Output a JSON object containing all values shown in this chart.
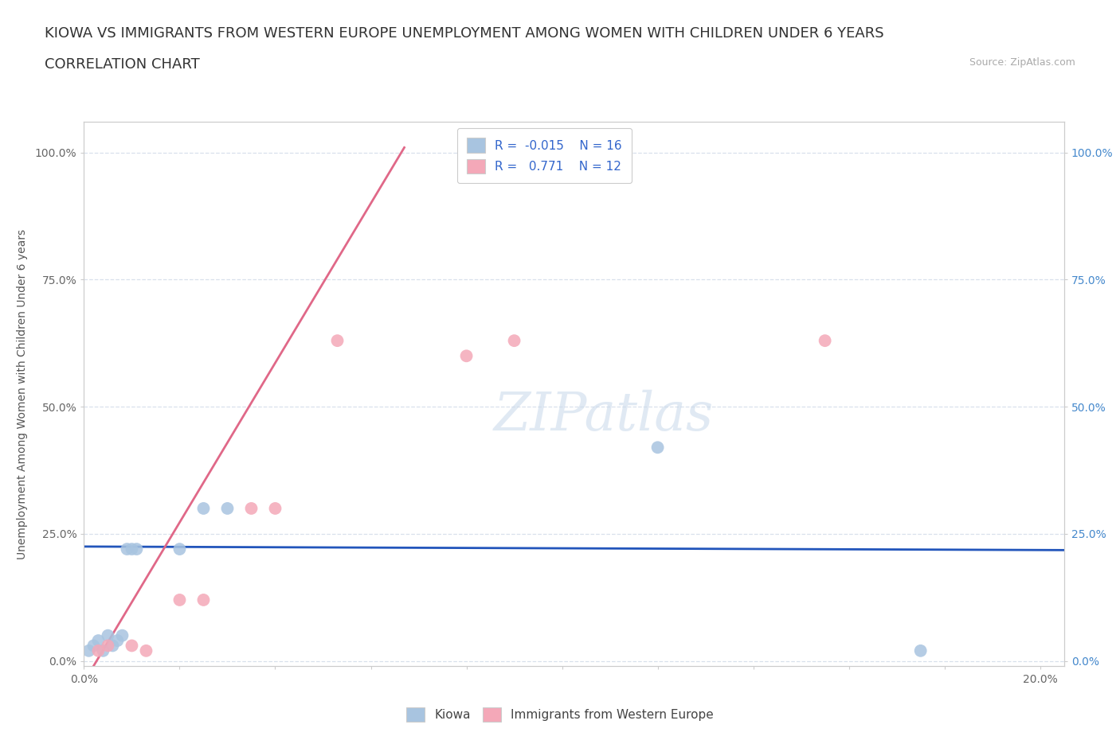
{
  "title_line1": "KIOWA VS IMMIGRANTS FROM WESTERN EUROPE UNEMPLOYMENT AMONG WOMEN WITH CHILDREN UNDER 6 YEARS",
  "title_line2": "CORRELATION CHART",
  "source_text": "Source: ZipAtlas.com",
  "ylabel": "Unemployment Among Women with Children Under 6 years",
  "xlim": [
    0.0,
    0.205
  ],
  "ylim": [
    -0.01,
    1.06
  ],
  "ytick_positions": [
    0.0,
    0.25,
    0.5,
    0.75,
    1.0
  ],
  "ytick_labels": [
    "0.0%",
    "25.0%",
    "50.0%",
    "75.0%",
    "100.0%"
  ],
  "ytick_right_labels": [
    "0.0%",
    "25.0%",
    "50.0%",
    "75.0%",
    "100.0%"
  ],
  "kiowa_color": "#a8c4e0",
  "immigrants_color": "#f4a8b8",
  "kiowa_R": -0.015,
  "kiowa_N": 16,
  "immigrants_R": 0.771,
  "immigrants_N": 12,
  "background_color": "#ffffff",
  "grid_color": "#d8e0ec",
  "kiowa_scatter_x": [
    0.001,
    0.002,
    0.003,
    0.004,
    0.005,
    0.006,
    0.007,
    0.008,
    0.009,
    0.01,
    0.011,
    0.02,
    0.025,
    0.03,
    0.12,
    0.175
  ],
  "kiowa_scatter_y": [
    0.02,
    0.03,
    0.04,
    0.02,
    0.05,
    0.03,
    0.04,
    0.05,
    0.22,
    0.22,
    0.22,
    0.22,
    0.3,
    0.3,
    0.42,
    0.02
  ],
  "immigrants_scatter_x": [
    0.003,
    0.005,
    0.01,
    0.013,
    0.02,
    0.025,
    0.035,
    0.04,
    0.053,
    0.08,
    0.09,
    0.155
  ],
  "immigrants_scatter_y": [
    0.02,
    0.03,
    0.03,
    0.02,
    0.12,
    0.12,
    0.3,
    0.3,
    0.63,
    0.6,
    0.63,
    0.63
  ],
  "kiowa_line_x": [
    0.0,
    0.205
  ],
  "kiowa_line_y": [
    0.225,
    0.218
  ],
  "immigrants_line_x": [
    0.002,
    0.067
  ],
  "immigrants_line_y": [
    -0.01,
    1.01
  ],
  "title_fontsize": 13,
  "subtitle_fontsize": 13,
  "source_fontsize": 9,
  "axis_label_fontsize": 10,
  "tick_fontsize": 10,
  "legend_fontsize": 11
}
